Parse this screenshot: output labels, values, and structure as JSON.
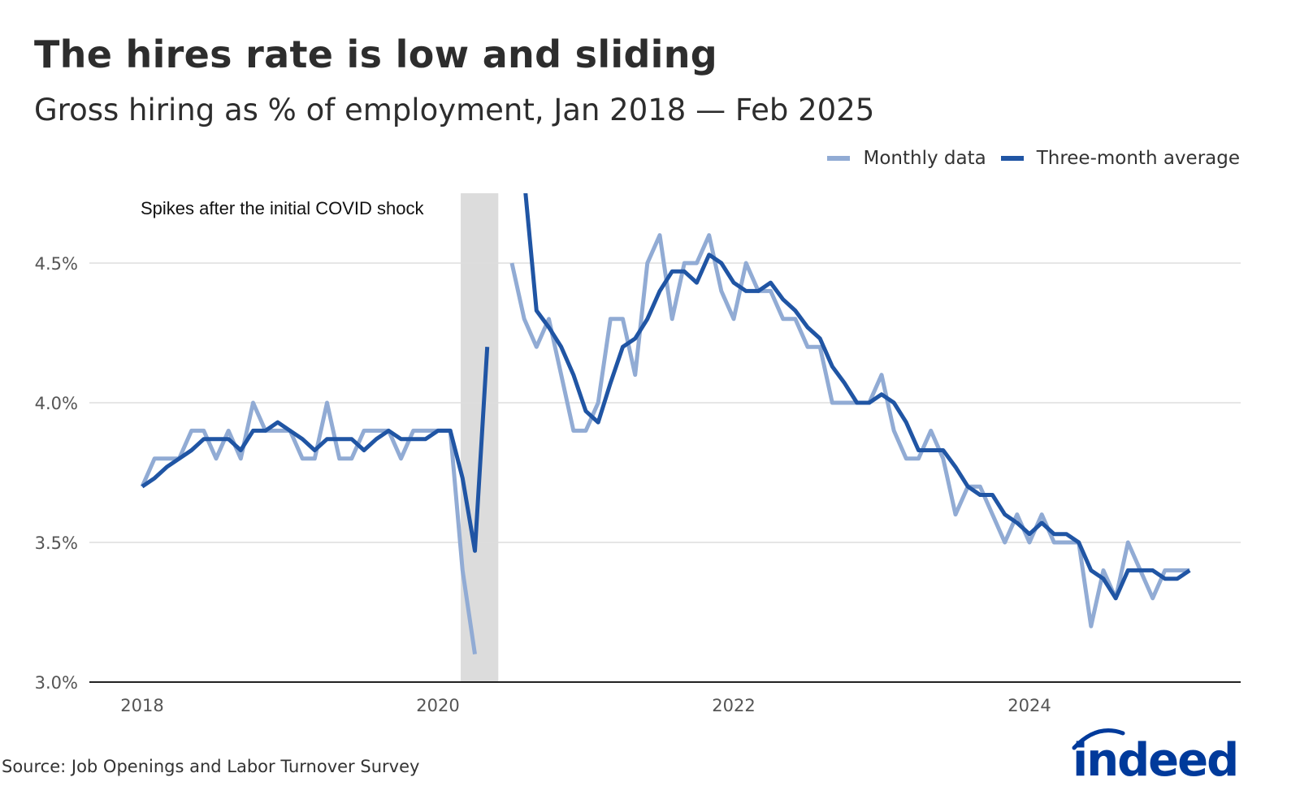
{
  "chart_data": {
    "type": "line",
    "title": "The hires rate is low and sliding",
    "subtitle": "Gross hiring as % of employment, Jan 2018 — Feb 2025",
    "source": "Source: Job Openings and Labor Turnover Survey",
    "logo_text": "indeed",
    "x_start": "2018-01",
    "x_ticks": [
      "2018",
      "2020",
      "2022",
      "2024"
    ],
    "y_ticks": [
      "3.0%",
      "3.5%",
      "4.0%",
      "4.5%"
    ],
    "y_tick_values": [
      3.0,
      3.5,
      4.0,
      4.5
    ],
    "ylim": [
      3.0,
      4.75
    ],
    "grid": "horizontal",
    "legend_position": "top-right",
    "annotation": {
      "text": "Spikes after the initial COVID shock",
      "shaded_from": "2020-03",
      "shaded_to": "2020-06"
    },
    "colors": {
      "monthly": "#91abd4",
      "average": "#2055a4",
      "shade": "#dcdcdc",
      "grid": "#dddddd",
      "axis": "#222222",
      "logo": "#003a9b"
    },
    "series": [
      {
        "name": "Monthly data",
        "values": [
          3.7,
          3.8,
          3.8,
          3.8,
          3.9,
          3.9,
          3.8,
          3.9,
          3.8,
          4.0,
          3.9,
          3.9,
          3.9,
          3.8,
          3.8,
          4.0,
          3.8,
          3.8,
          3.9,
          3.9,
          3.9,
          3.8,
          3.9,
          3.9,
          3.9,
          3.9,
          3.4,
          3.1,
          null,
          null,
          4.5,
          4.3,
          4.2,
          4.3,
          4.1,
          3.9,
          3.9,
          4.0,
          4.3,
          4.3,
          4.1,
          4.5,
          4.6,
          4.3,
          4.5,
          4.5,
          4.6,
          4.4,
          4.3,
          4.5,
          4.4,
          4.4,
          4.3,
          4.3,
          4.2,
          4.2,
          4.0,
          4.0,
          4.0,
          4.0,
          4.1,
          3.9,
          3.8,
          3.8,
          3.9,
          3.8,
          3.6,
          3.7,
          3.7,
          3.6,
          3.5,
          3.6,
          3.5,
          3.6,
          3.5,
          3.5,
          3.5,
          3.2,
          3.4,
          3.3,
          3.5,
          3.4,
          3.3,
          3.4,
          3.4,
          3.4
        ]
      },
      {
        "name": "Three-month average",
        "values": [
          3.7,
          3.73,
          3.77,
          3.8,
          3.83,
          3.87,
          3.87,
          3.87,
          3.83,
          3.9,
          3.9,
          3.93,
          3.9,
          3.87,
          3.83,
          3.87,
          3.87,
          3.87,
          3.83,
          3.87,
          3.9,
          3.87,
          3.87,
          3.87,
          3.9,
          3.9,
          3.73,
          3.47,
          4.2,
          null,
          null,
          4.8,
          4.33,
          4.27,
          4.2,
          4.1,
          3.97,
          3.93,
          4.07,
          4.2,
          4.23,
          4.3,
          4.4,
          4.47,
          4.47,
          4.43,
          4.53,
          4.5,
          4.43,
          4.4,
          4.4,
          4.43,
          4.37,
          4.33,
          4.27,
          4.23,
          4.13,
          4.07,
          4.0,
          4.0,
          4.03,
          4.0,
          3.93,
          3.83,
          3.83,
          3.83,
          3.77,
          3.7,
          3.67,
          3.67,
          3.6,
          3.57,
          3.53,
          3.57,
          3.53,
          3.53,
          3.5,
          3.4,
          3.37,
          3.3,
          3.4,
          3.4,
          3.4,
          3.37,
          3.37,
          3.4
        ]
      }
    ]
  }
}
